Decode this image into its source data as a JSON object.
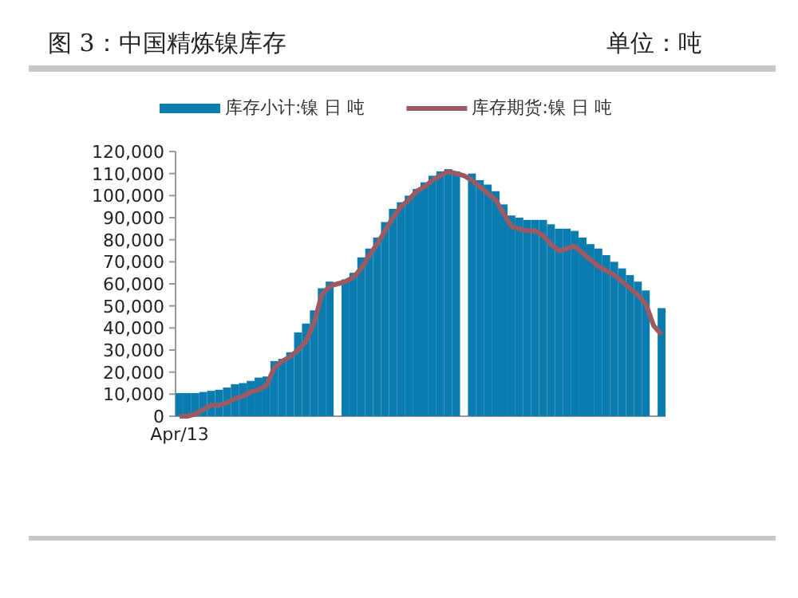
{
  "chart_data": {
    "type": "bar",
    "title": "图 3：中国精炼镍库存",
    "subtitle": "单位：吨",
    "categories": [
      "Apr/13",
      null,
      null,
      null,
      null,
      null,
      null,
      null,
      null,
      null,
      null,
      null,
      null,
      null,
      null,
      null,
      null,
      null,
      null,
      null,
      null,
      null,
      null,
      null,
      null,
      null,
      null,
      null,
      null,
      null,
      null,
      null,
      null,
      null,
      null,
      null,
      null,
      null,
      null,
      null,
      null,
      null,
      null,
      null,
      null,
      null,
      null,
      null,
      null,
      null,
      null,
      null,
      null,
      null,
      null,
      null,
      null,
      null,
      null,
      null,
      null,
      null
    ],
    "series": [
      {
        "name": "库存小计:镍 日 吨",
        "color": "#0a7cb0",
        "values": [
          10500,
          10500,
          10500,
          11000,
          11500,
          12000,
          13000,
          14500,
          15000,
          16000,
          17500,
          18000,
          25000,
          26000,
          29000,
          38000,
          42000,
          48000,
          58000,
          61000,
          null,
          62000,
          65000,
          72000,
          76000,
          81000,
          88000,
          94000,
          97000,
          100000,
          103000,
          106000,
          109000,
          111000,
          112000,
          111000,
          null,
          110000,
          107000,
          105000,
          102000,
          96000,
          91000,
          90000,
          89000,
          89000,
          89000,
          87000,
          85000,
          85000,
          84000,
          81000,
          78000,
          76000,
          73000,
          70000,
          67000,
          64000,
          61000,
          57000,
          null,
          49000
        ]
      },
      {
        "name": "库存期货:镍 日 吨",
        "type": "line",
        "color": "#9b5a63",
        "values": [
          0,
          0,
          1000,
          3000,
          5000,
          5000,
          6000,
          8000,
          9000,
          11000,
          12000,
          14000,
          22000,
          25000,
          27000,
          30000,
          34000,
          42000,
          55000,
          59000,
          60000,
          61000,
          63000,
          67000,
          73000,
          78000,
          84000,
          90000,
          95000,
          98000,
          102000,
          104000,
          107000,
          109000,
          111000,
          110000,
          109000,
          107000,
          104000,
          101000,
          98000,
          92000,
          86000,
          85000,
          84000,
          84000,
          82000,
          78000,
          75000,
          76000,
          77000,
          74000,
          71000,
          68000,
          66000,
          64000,
          61000,
          58000,
          55000,
          51000,
          41000,
          37000
        ]
      }
    ],
    "ylim": [
      0,
      120000
    ],
    "yticks": [
      0,
      {
        "value": 10000,
        "label": "10,000"
      },
      {
        "value": 20000,
        "label": "20,000"
      },
      {
        "value": 30000,
        "label": "30,000"
      },
      {
        "value": 40000,
        "label": "40,000"
      },
      {
        "value": 50000,
        "label": "50,000"
      },
      {
        "value": 60000,
        "label": "60,000"
      },
      {
        "value": 70000,
        "label": "70,000"
      },
      {
        "value": 80000,
        "label": "80,000"
      },
      {
        "value": 90000,
        "label": "90,000"
      },
      {
        "value": 100000,
        "label": "100,000"
      },
      {
        "value": 110000,
        "label": "110,000"
      },
      {
        "value": 120000,
        "label": "120,000"
      }
    ],
    "legend": "top"
  }
}
